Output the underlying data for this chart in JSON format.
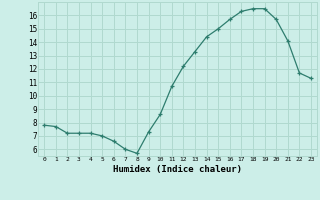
{
  "x": [
    0,
    1,
    2,
    3,
    4,
    5,
    6,
    7,
    8,
    9,
    10,
    11,
    12,
    13,
    14,
    15,
    16,
    17,
    18,
    19,
    20,
    21,
    22,
    23
  ],
  "y": [
    7.8,
    7.7,
    7.2,
    7.2,
    7.2,
    7.0,
    6.6,
    6.0,
    5.7,
    7.3,
    8.6,
    10.7,
    12.2,
    13.3,
    14.4,
    15.0,
    15.7,
    16.3,
    16.5,
    16.5,
    15.7,
    14.1,
    11.7,
    11.3
  ],
  "line_color": "#2e7d6e",
  "marker": "+",
  "bg_color": "#cceee8",
  "grid_color": "#b0d9cf",
  "xlabel": "Humidex (Indice chaleur)",
  "ylabel_ticks": [
    6,
    7,
    8,
    9,
    10,
    11,
    12,
    13,
    14,
    15,
    16
  ],
  "xlim": [
    -0.5,
    23.5
  ],
  "ylim": [
    5.5,
    17.0
  ],
  "xtick_labels": [
    "0",
    "1",
    "2",
    "3",
    "4",
    "5",
    "6",
    "7",
    "8",
    "9",
    "10",
    "11",
    "12",
    "13",
    "14",
    "15",
    "16",
    "17",
    "18",
    "19",
    "20",
    "21",
    "22",
    "23"
  ]
}
